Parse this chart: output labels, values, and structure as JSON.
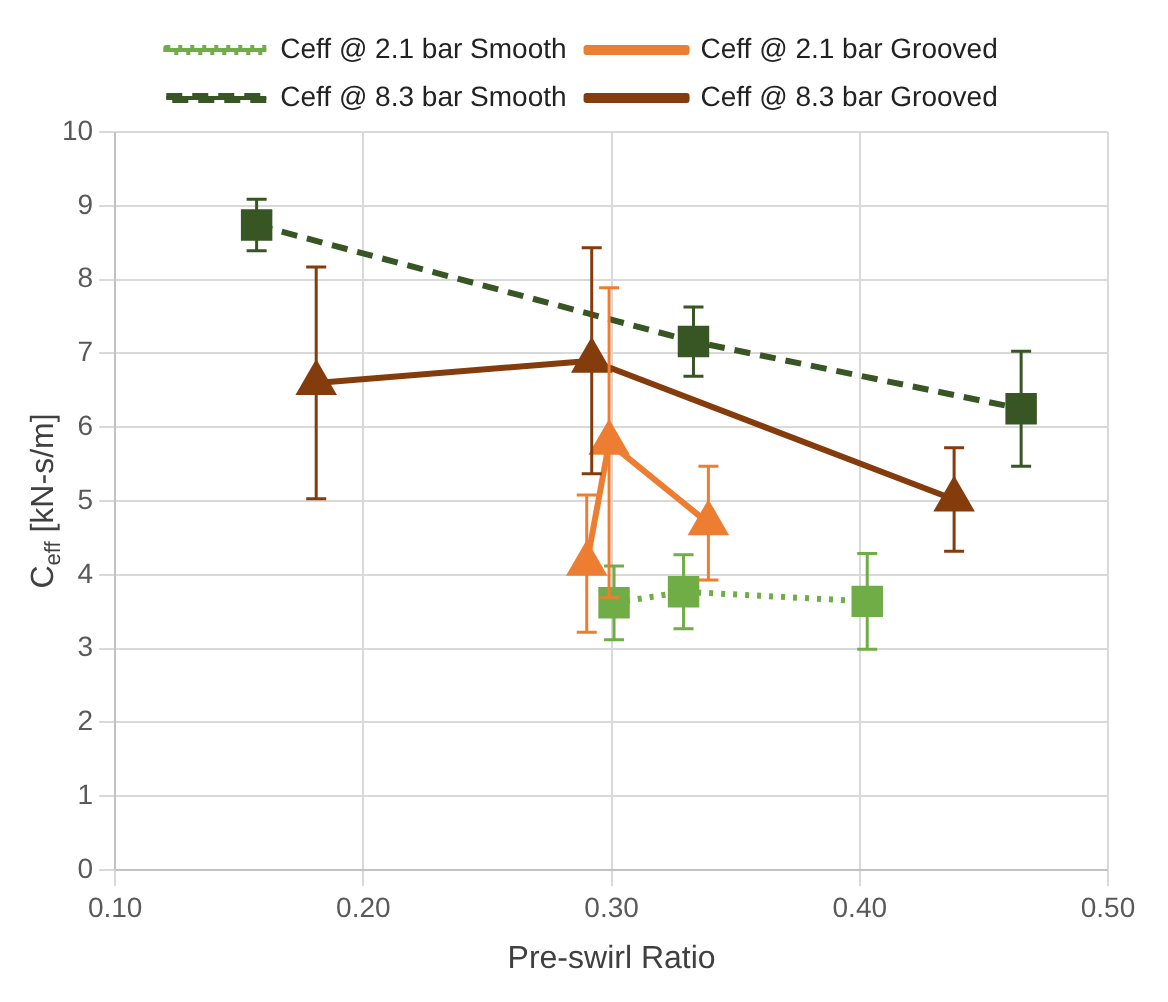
{
  "chart_data": {
    "type": "line",
    "xlabel": "Pre-swirl Ratio",
    "ylabel": "C$_{eff}$ [kN-s/m]",
    "xlim": [
      0.1,
      0.5
    ],
    "xticks": [
      {
        "value": 0.1,
        "label": "0.10"
      },
      {
        "value": 0.2,
        "label": "0.20"
      },
      {
        "value": 0.3,
        "label": "0.30"
      },
      {
        "value": 0.4,
        "label": "0.40"
      },
      {
        "value": 0.5,
        "label": "0.50"
      }
    ],
    "ylim": [
      0,
      10
    ],
    "yticks": [
      0,
      1,
      2,
      3,
      4,
      5,
      6,
      7,
      8,
      9,
      10
    ],
    "grid": true,
    "legend": "top",
    "series": [
      {
        "name": "Ceff @ 2.1 bar Smooth",
        "color": "#70ad47",
        "marker": "square",
        "line_style": "dotted",
        "x": [
          0.301,
          0.329,
          0.403
        ],
        "values": [
          3.62,
          3.77,
          3.64
        ],
        "errors": [
          0.5,
          0.5,
          0.65
        ]
      },
      {
        "name": "Ceff @ 2.1 bar Grooved",
        "color": "#ed7d31",
        "marker": "triangle",
        "line_style": "solid",
        "x": [
          0.29,
          0.299,
          0.339
        ],
        "values": [
          4.15,
          5.79,
          4.7
        ],
        "errors": [
          0.93,
          2.1,
          0.77
        ]
      },
      {
        "name": "Ceff @ 8.3 bar Smooth",
        "color": "#375623",
        "marker": "square",
        "line_style": "dashed",
        "x": [
          0.157,
          0.333,
          0.465
        ],
        "values": [
          8.74,
          7.16,
          6.25
        ],
        "errors": [
          0.35,
          0.47,
          0.78
        ]
      },
      {
        "name": "Ceff @ 8.3 bar Grooved",
        "color": "#843c0c",
        "marker": "triangle",
        "line_style": "solid",
        "x": [
          0.181,
          0.292,
          0.438
        ],
        "values": [
          6.6,
          6.9,
          5.02
        ],
        "errors": [
          1.57,
          1.53,
          0.7
        ]
      }
    ]
  }
}
